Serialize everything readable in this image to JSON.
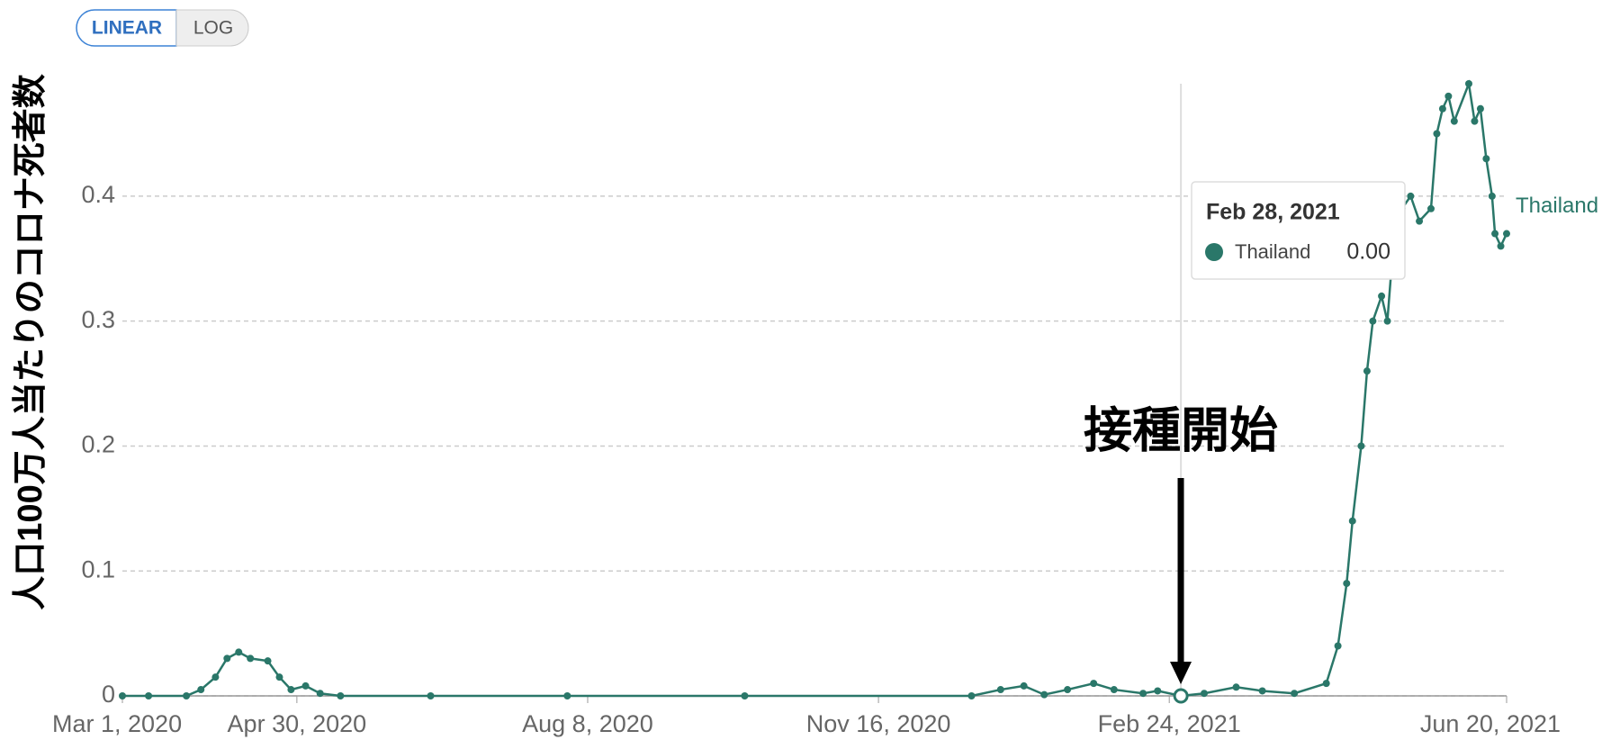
{
  "chart_data": {
    "type": "line",
    "ylabel": "人口100万人当たりのコロナ死者数",
    "controls": [
      "LINEAR",
      "LOG"
    ],
    "annotation": "接種開始",
    "xlim": [
      "2020-03-01",
      "2021-06-20"
    ],
    "ylim": [
      0,
      0.49
    ],
    "yticks": [
      0,
      0.1,
      0.2,
      0.3,
      0.4
    ],
    "xticks": [
      {
        "value": "2020-03-01",
        "label": "Mar 1, 2020"
      },
      {
        "value": "2020-04-30",
        "label": "Apr 30, 2020"
      },
      {
        "value": "2020-08-08",
        "label": "Aug 8, 2020"
      },
      {
        "value": "2020-11-16",
        "label": "Nov 16, 2020"
      },
      {
        "value": "2021-02-24",
        "label": "Feb 24, 2021"
      },
      {
        "value": "2021-06-20",
        "label": "Jun 20, 2021"
      }
    ],
    "grid": true,
    "x": [
      "2020-03-01",
      "2020-03-10",
      "2020-03-23",
      "2020-03-28",
      "2020-04-02",
      "2020-04-06",
      "2020-04-10",
      "2020-04-14",
      "2020-04-20",
      "2020-04-24",
      "2020-04-28",
      "2020-05-03",
      "2020-05-08",
      "2020-05-15",
      "2020-06-15",
      "2020-08-01",
      "2020-10-01",
      "2020-12-18",
      "2020-12-28",
      "2021-01-05",
      "2021-01-12",
      "2021-01-20",
      "2021-01-29",
      "2021-02-05",
      "2021-02-15",
      "2021-02-20",
      "2021-02-28",
      "2021-03-08",
      "2021-03-19",
      "2021-03-28",
      "2021-04-08",
      "2021-04-19",
      "2021-04-23",
      "2021-04-26",
      "2021-04-28",
      "2021-05-01",
      "2021-05-03",
      "2021-05-05",
      "2021-05-08",
      "2021-05-10",
      "2021-05-12",
      "2021-05-15",
      "2021-05-18",
      "2021-05-21",
      "2021-05-25",
      "2021-05-27",
      "2021-05-29",
      "2021-05-31",
      "2021-06-02",
      "2021-06-07",
      "2021-06-09",
      "2021-06-11",
      "2021-06-13",
      "2021-06-15",
      "2021-06-16",
      "2021-06-18",
      "2021-06-20"
    ],
    "series": [
      {
        "name": "Thailand",
        "color": "#2a7769",
        "values": [
          0,
          0,
          0,
          0.005,
          0.015,
          0.03,
          0.035,
          0.03,
          0.028,
          0.015,
          0.005,
          0.008,
          0.002,
          0,
          0,
          0,
          0,
          0,
          0.005,
          0.008,
          0.001,
          0.005,
          0.01,
          0.005,
          0.002,
          0.004,
          0,
          0.002,
          0.007,
          0.004,
          0.002,
          0.01,
          0.04,
          0.09,
          0.14,
          0.2,
          0.26,
          0.3,
          0.32,
          0.3,
          0.36,
          0.39,
          0.4,
          0.38,
          0.39,
          0.45,
          0.47,
          0.48,
          0.46,
          0.49,
          0.46,
          0.47,
          0.43,
          0.4,
          0.37,
          0.36,
          0.37
        ]
      }
    ],
    "tooltip": {
      "title": "Feb 28, 2021",
      "date": "2021-02-28",
      "name": "Thailand",
      "value": 0,
      "value_label": "0.00"
    }
  }
}
